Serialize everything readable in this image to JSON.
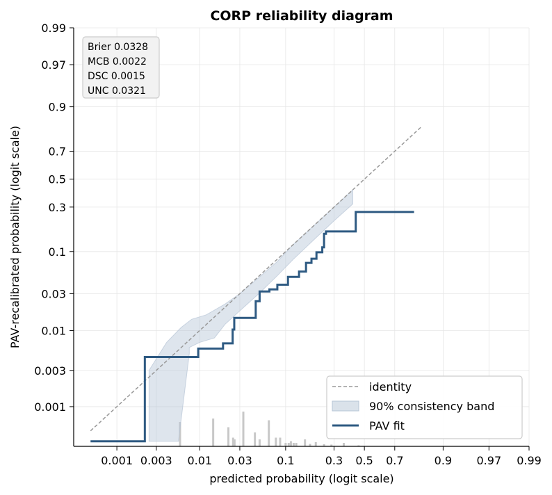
{
  "chart_data": {
    "type": "line",
    "title": "CORP reliability diagram",
    "xlabel": "predicted probability (logit scale)",
    "ylabel": "PAV-recalibrated probability (logit scale)",
    "x_scale": "logit",
    "y_scale": "logit",
    "xlim": [
      0.0003,
      0.99
    ],
    "ylim": [
      0.0003,
      0.99
    ],
    "x_ticks": [
      0.001,
      0.003,
      0.01,
      0.03,
      0.1,
      0.3,
      0.5,
      0.7,
      0.9,
      0.97,
      0.99
    ],
    "x_tick_labels": [
      "0.001",
      "0.003",
      "0.01",
      "0.03",
      "0.1",
      "0.3",
      "0.5",
      "0.7",
      "0.9",
      "0.97",
      "0.99"
    ],
    "y_ticks": [
      0.001,
      0.003,
      0.01,
      0.03,
      0.1,
      0.3,
      0.5,
      0.7,
      0.9,
      0.97,
      0.99
    ],
    "y_tick_labels": [
      "0.001",
      "0.003",
      "0.01",
      "0.03",
      "0.1",
      "0.3",
      "0.5",
      "0.7",
      "0.9",
      "0.97",
      "0.99"
    ],
    "grid": true,
    "legend_position": "lower-right",
    "stats": [
      "Brier 0.0328",
      "MCB 0.0022",
      "DSC 0.0015",
      "UNC 0.0321"
    ],
    "series": [
      {
        "name": "identity",
        "style": "dashed",
        "color": "#999999",
        "x": [
          0.00048,
          0.83
        ],
        "y": [
          0.00048,
          0.83
        ]
      },
      {
        "name": "90% consistency band",
        "style": "band",
        "color": "#b6c5d6",
        "upper": {
          "x": [
            0.00245,
            0.004,
            0.006,
            0.008,
            0.012,
            0.02,
            0.03,
            0.05,
            0.08,
            0.12,
            0.2,
            0.3,
            0.42,
            0.42
          ],
          "y": [
            0.003,
            0.007,
            0.011,
            0.014,
            0.016,
            0.022,
            0.03,
            0.048,
            0.075,
            0.12,
            0.2,
            0.3,
            0.42,
            0.42
          ]
        },
        "lower": {
          "x": [
            0.00245,
            0.00555,
            0.0075,
            0.0075,
            0.01,
            0.015,
            0.02,
            0.03,
            0.05,
            0.08,
            0.12,
            0.2,
            0.3,
            0.42
          ],
          "y": [
            0.00035,
            0.00035,
            0.005,
            0.006,
            0.007,
            0.008,
            0.012,
            0.018,
            0.03,
            0.05,
            0.08,
            0.14,
            0.22,
            0.32
          ]
        }
      },
      {
        "name": "PAV fit",
        "style": "step",
        "color": "#2e5a82",
        "x": [
          0.00048,
          0.00218,
          0.00218,
          0.0096,
          0.0096,
          0.019,
          0.019,
          0.0247,
          0.0247,
          0.0258,
          0.0258,
          0.046,
          0.046,
          0.051,
          0.051,
          0.066,
          0.066,
          0.081,
          0.081,
          0.106,
          0.106,
          0.139,
          0.139,
          0.164,
          0.164,
          0.186,
          0.186,
          0.208,
          0.208,
          0.236,
          0.236,
          0.245,
          0.245,
          0.255,
          0.255,
          0.44,
          0.44,
          0.8
        ],
        "y": [
          0.00035,
          0.00035,
          0.0045,
          0.0045,
          0.0058,
          0.0058,
          0.0068,
          0.0068,
          0.0103,
          0.0103,
          0.0146,
          0.0146,
          0.024,
          0.024,
          0.032,
          0.032,
          0.034,
          0.034,
          0.039,
          0.039,
          0.049,
          0.049,
          0.057,
          0.057,
          0.073,
          0.073,
          0.082,
          0.082,
          0.098,
          0.098,
          0.112,
          0.112,
          0.16,
          0.16,
          0.17,
          0.17,
          0.27,
          0.27
        ]
      }
    ],
    "histogram": {
      "color": "#c8c8c8",
      "bars": [
        {
          "x": 0.0058,
          "h": 0.7
        },
        {
          "x": 0.0145,
          "h": 0.8
        },
        {
          "x": 0.022,
          "h": 0.55
        },
        {
          "x": 0.025,
          "h": 0.25
        },
        {
          "x": 0.026,
          "h": 0.2
        },
        {
          "x": 0.033,
          "h": 1.0
        },
        {
          "x": 0.045,
          "h": 0.4
        },
        {
          "x": 0.051,
          "h": 0.2
        },
        {
          "x": 0.065,
          "h": 0.75
        },
        {
          "x": 0.078,
          "h": 0.25
        },
        {
          "x": 0.087,
          "h": 0.25
        },
        {
          "x": 0.1,
          "h": 0.1
        },
        {
          "x": 0.108,
          "h": 0.1
        },
        {
          "x": 0.114,
          "h": 0.15
        },
        {
          "x": 0.122,
          "h": 0.1
        },
        {
          "x": 0.13,
          "h": 0.1
        },
        {
          "x": 0.16,
          "h": 0.2
        },
        {
          "x": 0.18,
          "h": 0.07
        },
        {
          "x": 0.205,
          "h": 0.12
        },
        {
          "x": 0.245,
          "h": 0.06
        },
        {
          "x": 0.285,
          "h": 0.05
        },
        {
          "x": 0.36,
          "h": 0.1
        },
        {
          "x": 0.46,
          "h": 0.03
        }
      ]
    }
  }
}
